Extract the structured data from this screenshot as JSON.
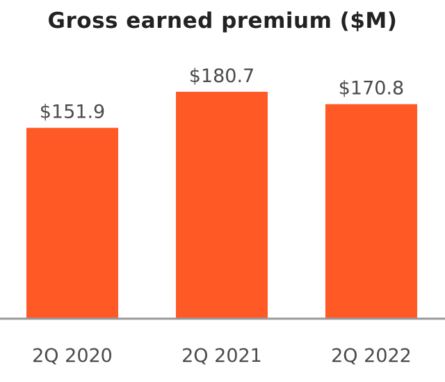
{
  "chart_data": {
    "type": "bar",
    "title": "Gross earned premium ($M)",
    "categories": [
      "2Q 2020",
      "2Q 2021",
      "2Q 2022"
    ],
    "values": [
      151.9,
      180.7,
      170.8
    ],
    "data_labels": [
      "$151.9",
      "$180.7",
      "$170.8"
    ],
    "xlabel": "",
    "ylabel": "",
    "ylim": [
      0,
      254
    ],
    "grid": false,
    "bar_color": "#FF5A26",
    "axis_color": "#999999",
    "text_color": "#4a4a4a"
  }
}
